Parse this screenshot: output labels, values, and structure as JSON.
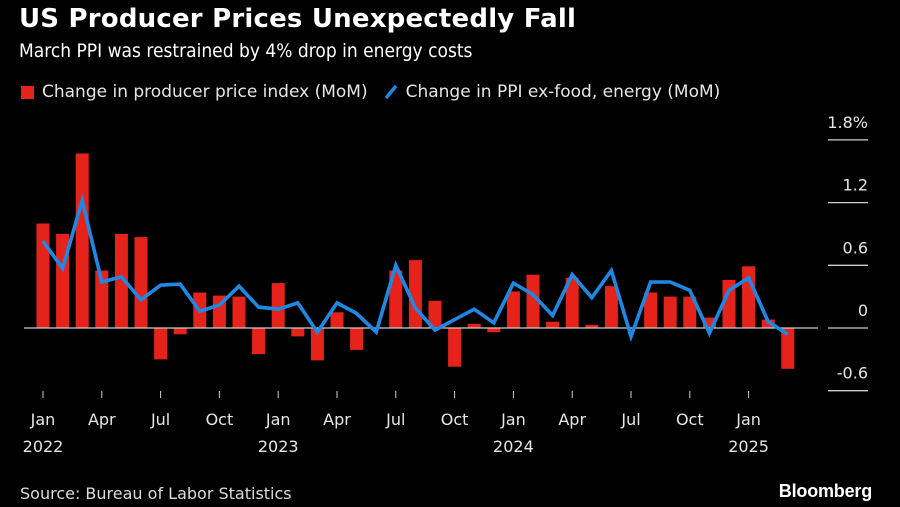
{
  "header": {
    "title": "US Producer Prices Unexpectedly Fall",
    "subtitle": "March PPI was restrained by 4% drop in energy costs"
  },
  "legend": {
    "bar_label": "Change in producer price index (MoM)",
    "line_label": "Change in PPI ex-food, energy (MoM)"
  },
  "footer": {
    "source": "Source: Bureau of Labor Statistics",
    "brand": "Bloomberg"
  },
  "colors": {
    "background": "#000000",
    "bar": "#e5231b",
    "line": "#1e88e5",
    "axis": "#cfcfcf",
    "text": "#e6e6e6"
  },
  "chart_data": {
    "type": "bar",
    "title": "US Producer Prices Unexpectedly Fall",
    "subtitle": "March PPI was restrained by 4% drop in energy costs",
    "xlabel": "",
    "ylabel": "",
    "ylim": [
      -0.6,
      1.8
    ],
    "y_ticks": [
      {
        "value": 1.8,
        "label": "1.8%"
      },
      {
        "value": 1.2,
        "label": "1.2"
      },
      {
        "value": 0.6,
        "label": "0.6"
      },
      {
        "value": 0,
        "label": "0"
      },
      {
        "value": -0.6,
        "label": "-0.6"
      }
    ],
    "y_axis_side": "right",
    "grid": false,
    "legend_position": "top-left",
    "categories": [
      "2022-01",
      "2022-02",
      "2022-03",
      "2022-04",
      "2022-05",
      "2022-06",
      "2022-07",
      "2022-08",
      "2022-09",
      "2022-10",
      "2022-11",
      "2022-12",
      "2023-01",
      "2023-02",
      "2023-03",
      "2023-04",
      "2023-05",
      "2023-06",
      "2023-07",
      "2023-08",
      "2023-09",
      "2023-10",
      "2023-11",
      "2023-12",
      "2024-01",
      "2024-02",
      "2024-03",
      "2024-04",
      "2024-05",
      "2024-06",
      "2024-07",
      "2024-08",
      "2024-09",
      "2024-10",
      "2024-11",
      "2024-12",
      "2025-01",
      "2025-02",
      "2025-03"
    ],
    "x_ticks": [
      {
        "index": 0,
        "label": "Jan",
        "year": "2022"
      },
      {
        "index": 3,
        "label": "Apr",
        "year": ""
      },
      {
        "index": 6,
        "label": "Jul",
        "year": ""
      },
      {
        "index": 9,
        "label": "Oct",
        "year": ""
      },
      {
        "index": 12,
        "label": "Jan",
        "year": "2023"
      },
      {
        "index": 15,
        "label": "Apr",
        "year": ""
      },
      {
        "index": 18,
        "label": "Jul",
        "year": ""
      },
      {
        "index": 21,
        "label": "Oct",
        "year": ""
      },
      {
        "index": 24,
        "label": "Jan",
        "year": "2024"
      },
      {
        "index": 27,
        "label": "Apr",
        "year": ""
      },
      {
        "index": 30,
        "label": "Jul",
        "year": ""
      },
      {
        "index": 33,
        "label": "Oct",
        "year": ""
      },
      {
        "index": 36,
        "label": "Jan",
        "year": "2025"
      }
    ],
    "series": [
      {
        "name": "Change in producer price index (MoM)",
        "type": "bar",
        "values": [
          1.0,
          0.9,
          1.67,
          0.55,
          0.9,
          0.87,
          -0.3,
          -0.06,
          0.34,
          0.31,
          0.3,
          -0.25,
          0.43,
          -0.08,
          -0.31,
          0.15,
          -0.21,
          0.0,
          0.55,
          0.65,
          0.26,
          -0.37,
          0.04,
          -0.04,
          0.35,
          0.51,
          0.06,
          0.48,
          0.03,
          0.4,
          0.0,
          0.34,
          0.3,
          0.3,
          0.1,
          0.46,
          0.59,
          0.08,
          -0.39
        ]
      },
      {
        "name": "Change in PPI ex-food, energy (MoM)",
        "type": "line",
        "values": [
          0.83,
          0.57,
          1.22,
          0.44,
          0.49,
          0.27,
          0.41,
          0.42,
          0.16,
          0.22,
          0.4,
          0.2,
          0.18,
          0.24,
          -0.04,
          0.24,
          0.14,
          -0.04,
          0.6,
          0.19,
          -0.02,
          0.08,
          0.18,
          0.05,
          0.43,
          0.32,
          0.12,
          0.51,
          0.29,
          0.55,
          -0.08,
          0.44,
          0.44,
          0.36,
          -0.05,
          0.36,
          0.48,
          0.06,
          -0.06
        ]
      }
    ]
  }
}
